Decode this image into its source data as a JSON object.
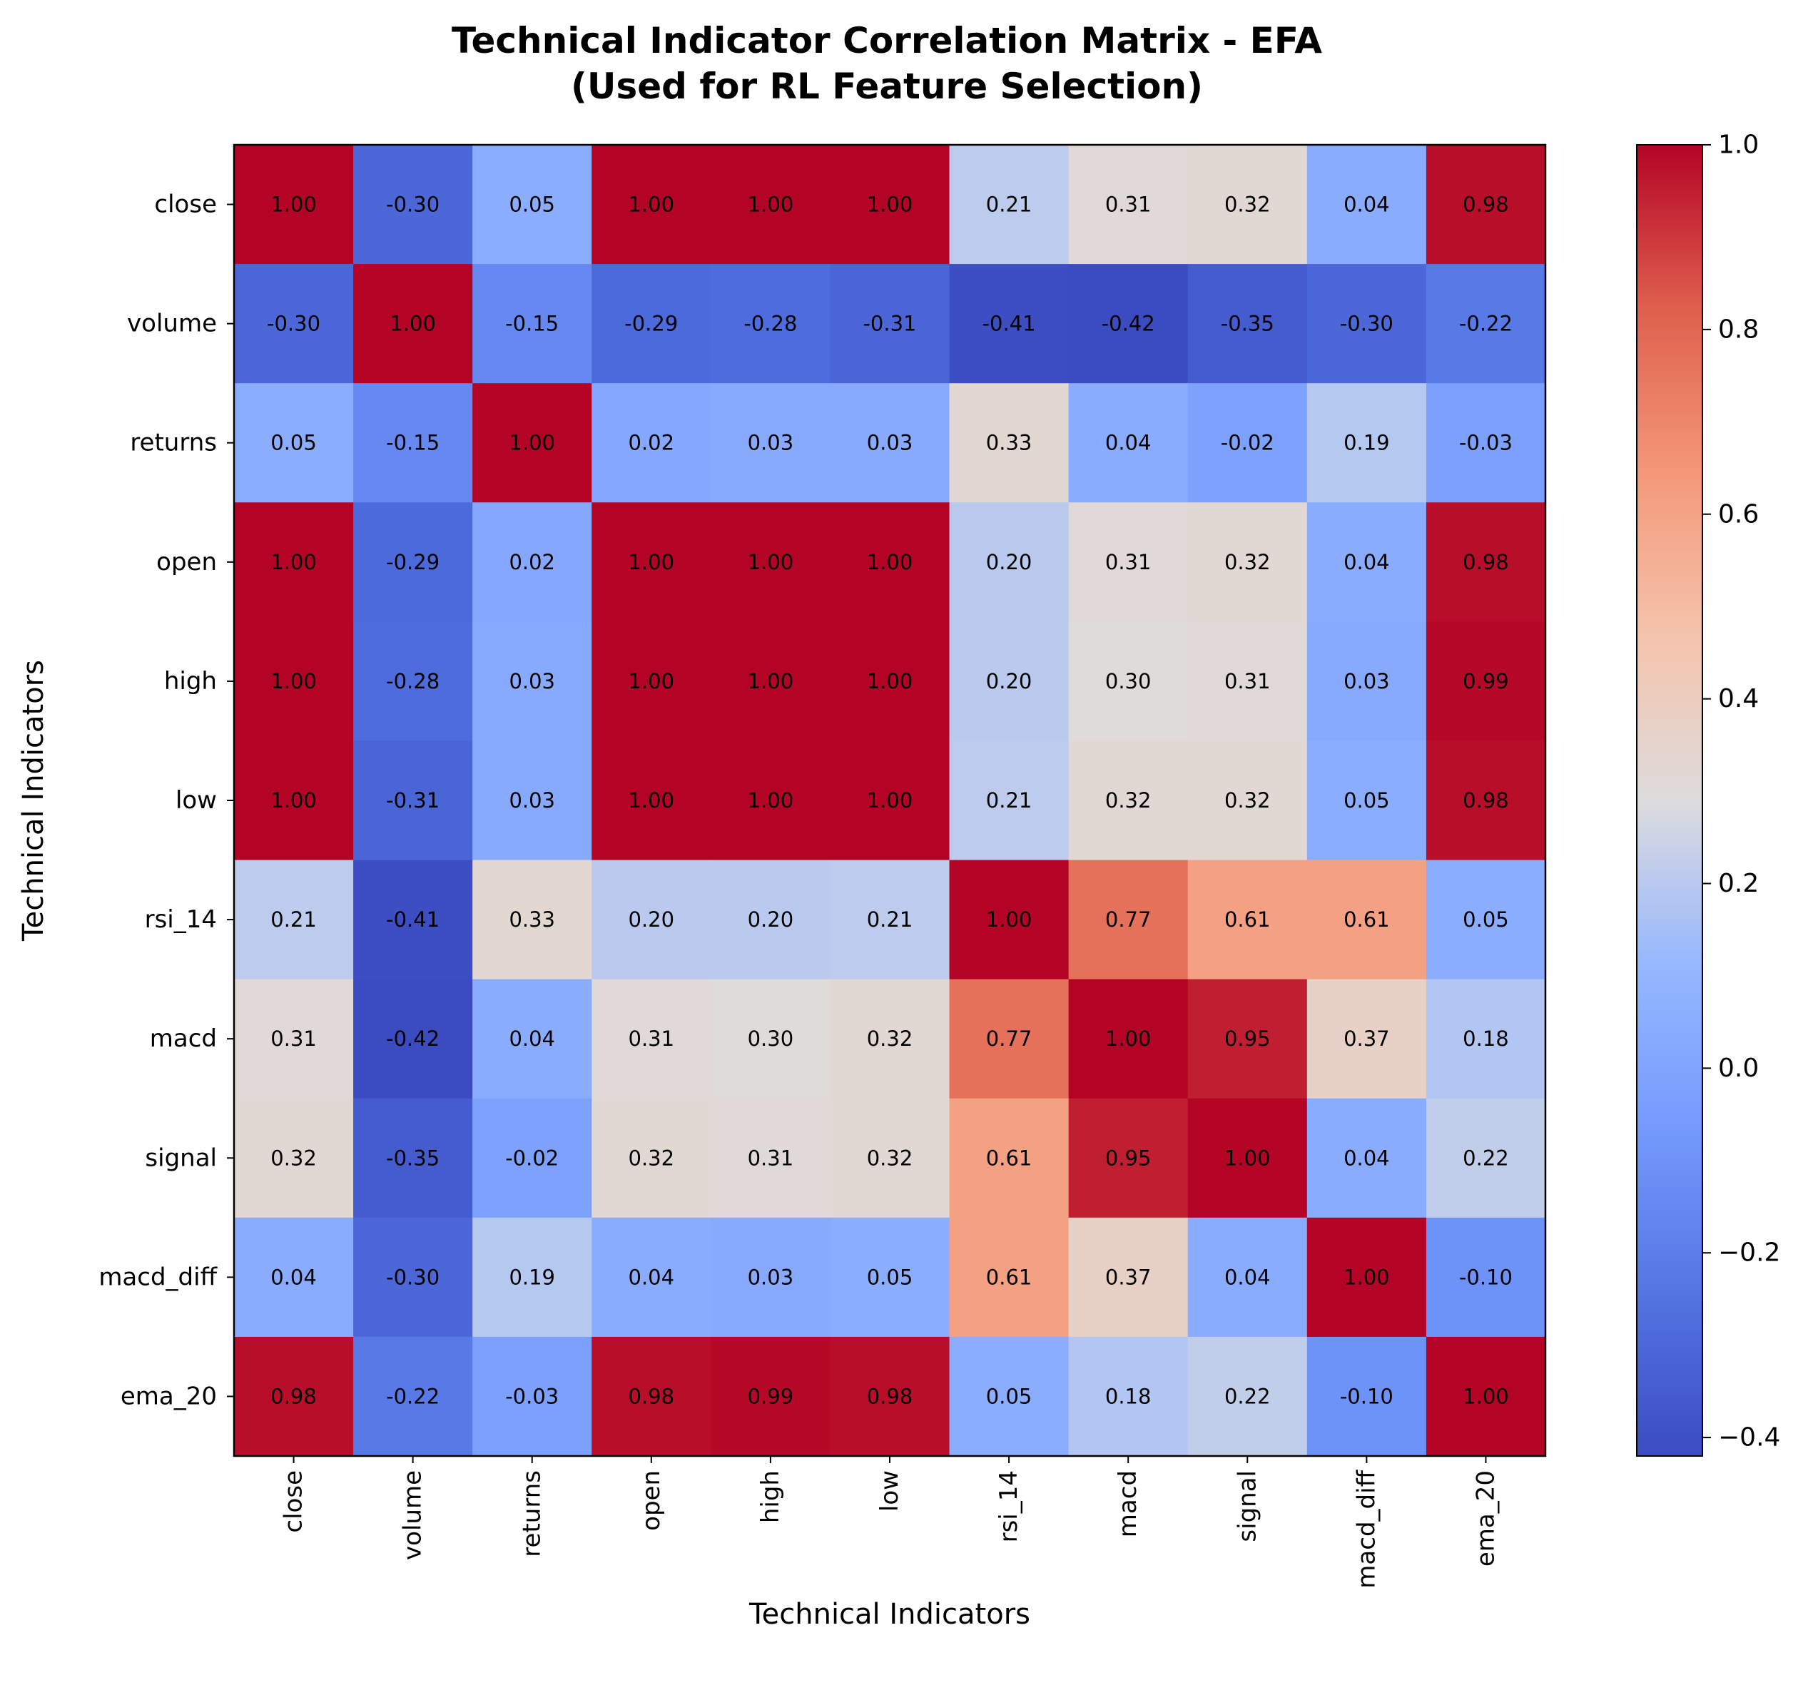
{
  "chart_data": {
    "type": "heatmap",
    "title": "Technical Indicator Correlation Matrix - EFA",
    "subtitle": "(Used for RL Feature Selection)",
    "xlabel": "Technical Indicators",
    "ylabel": "Technical Indicators",
    "categories": [
      "close",
      "volume",
      "returns",
      "open",
      "high",
      "low",
      "rsi_14",
      "macd",
      "signal",
      "macd_diff",
      "ema_20"
    ],
    "values": [
      [
        1.0,
        -0.3,
        0.05,
        1.0,
        1.0,
        1.0,
        0.21,
        0.31,
        0.32,
        0.04,
        0.98
      ],
      [
        -0.3,
        1.0,
        -0.15,
        -0.29,
        -0.28,
        -0.31,
        -0.41,
        -0.42,
        -0.35,
        -0.3,
        -0.22
      ],
      [
        0.05,
        -0.15,
        1.0,
        0.02,
        0.03,
        0.03,
        0.33,
        0.04,
        -0.02,
        0.19,
        -0.03
      ],
      [
        1.0,
        -0.29,
        0.02,
        1.0,
        1.0,
        1.0,
        0.2,
        0.31,
        0.32,
        0.04,
        0.98
      ],
      [
        1.0,
        -0.28,
        0.03,
        1.0,
        1.0,
        1.0,
        0.2,
        0.3,
        0.31,
        0.03,
        0.99
      ],
      [
        1.0,
        -0.31,
        0.03,
        1.0,
        1.0,
        1.0,
        0.21,
        0.32,
        0.32,
        0.05,
        0.98
      ],
      [
        0.21,
        -0.41,
        0.33,
        0.2,
        0.2,
        0.21,
        1.0,
        0.77,
        0.61,
        0.61,
        0.05
      ],
      [
        0.31,
        -0.42,
        0.04,
        0.31,
        0.3,
        0.32,
        0.77,
        1.0,
        0.95,
        0.37,
        0.18
      ],
      [
        0.32,
        -0.35,
        -0.02,
        0.32,
        0.31,
        0.32,
        0.61,
        0.95,
        1.0,
        0.04,
        0.22
      ],
      [
        0.04,
        -0.3,
        0.19,
        0.04,
        0.03,
        0.05,
        0.61,
        0.37,
        0.04,
        1.0,
        -0.1
      ],
      [
        0.98,
        -0.22,
        -0.03,
        0.98,
        0.99,
        0.98,
        0.05,
        0.18,
        0.22,
        -0.1,
        1.0
      ]
    ],
    "value_format": "2 decimals",
    "colormap": "coolwarm",
    "vmin": -0.42,
    "vmax": 1.0,
    "colorbar": {
      "ticks": [
        -0.4,
        -0.2,
        0.0,
        0.2,
        0.4,
        0.6,
        0.8,
        1.0
      ],
      "tick_labels": [
        "−0.4",
        "−0.2",
        "0.0",
        "0.2",
        "0.4",
        "0.6",
        "0.8",
        "1.0"
      ],
      "placement": "right"
    },
    "grid": false,
    "legend": "none"
  }
}
